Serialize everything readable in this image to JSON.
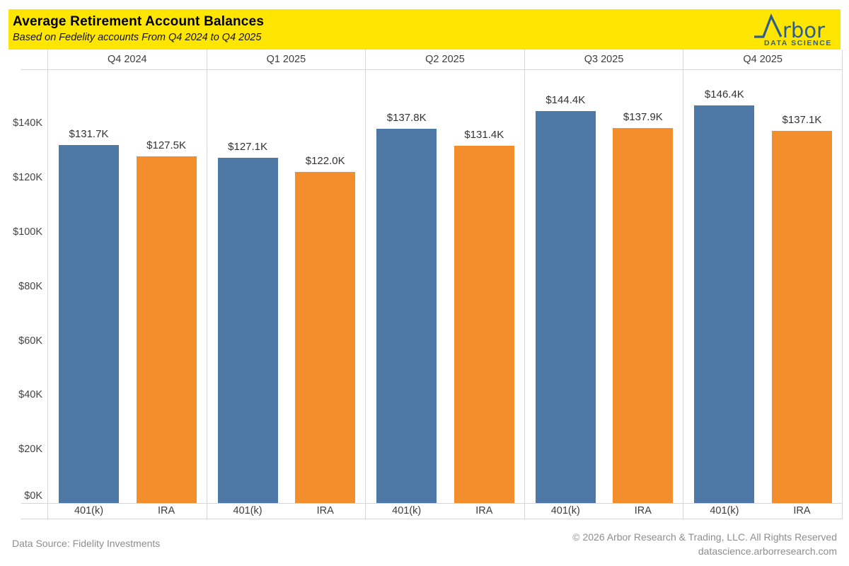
{
  "header": {
    "title": "Average Retirement Account Balances",
    "subtitle": "Based on Fedelity accounts From Q4 2024 to Q4 2025",
    "banner_color": "#ffe600",
    "logo": {
      "wordmark": "rbor",
      "tagline": "DATA SCIENCE",
      "color": "#2e5e8c"
    }
  },
  "chart_data": {
    "type": "bar",
    "title": "Average Retirement Account Balances",
    "subtitle": "Based on Fedelity accounts From Q4 2024 to Q4 2025",
    "panels": [
      "Q4 2024",
      "Q1 2025",
      "Q2 2025",
      "Q3 2025",
      "Q4 2025"
    ],
    "categories": [
      "401(k)",
      "IRA"
    ],
    "series": [
      {
        "name": "401(k)",
        "color": "#4e79a7",
        "values": [
          131.7,
          127.1,
          137.8,
          144.4,
          146.4
        ]
      },
      {
        "name": "IRA",
        "color": "#f28e2b",
        "values": [
          127.5,
          122.0,
          131.4,
          137.9,
          137.1
        ]
      }
    ],
    "value_labels": [
      [
        "$131.7K",
        "$127.5K"
      ],
      [
        "$127.1K",
        "$122.0K"
      ],
      [
        "$137.8K",
        "$131.4K"
      ],
      [
        "$144.4K",
        "$137.9K"
      ],
      [
        "$146.4K",
        "$137.1K"
      ]
    ],
    "unit": "USD thousands",
    "y_ticks": [
      "$0K",
      "$20K",
      "$40K",
      "$60K",
      "$80K",
      "$100K",
      "$120K",
      "$140K"
    ],
    "y_tick_values": [
      0,
      20,
      40,
      60,
      80,
      100,
      120,
      140
    ],
    "ylim": [
      0,
      159
    ],
    "grid": "off",
    "legend": "none"
  },
  "footer": {
    "source": "Data Source: Fidelity Investments",
    "copyright": "© 2026 Arbor Research & Trading, LLC. All Rights Reserved",
    "website": "datascience.arborresearch.com"
  }
}
